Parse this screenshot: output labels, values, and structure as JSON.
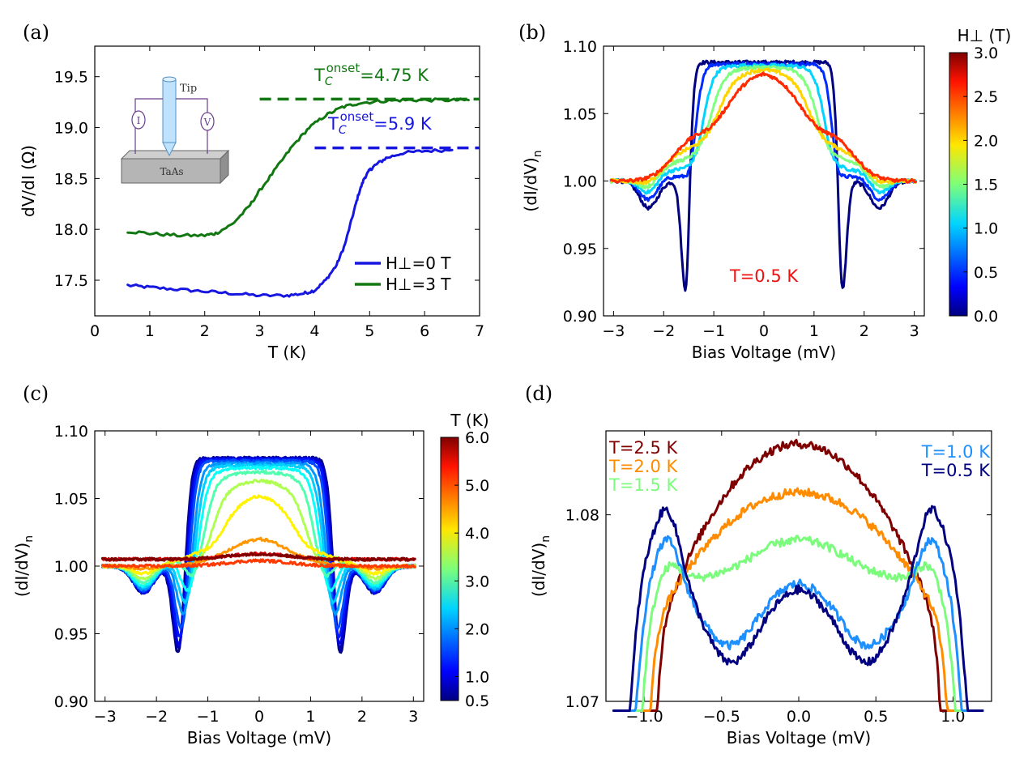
{
  "chart_data": [
    {
      "panel": "(a)",
      "type": "line",
      "xlabel": "T (K)",
      "ylabel": "dV/dI (Ω)",
      "xlim": [
        0,
        7
      ],
      "ylim": [
        17.15,
        19.8
      ],
      "xticks": [
        "0",
        "1",
        "2",
        "3",
        "4",
        "5",
        "6",
        "7"
      ],
      "yticks": [
        "17.5",
        "18.0",
        "18.5",
        "19.0",
        "19.5"
      ],
      "legend": {
        "position": "lower-right",
        "entries": [
          "H⊥=0 T",
          "H⊥=3 T"
        ]
      },
      "annotations": {
        "tc_green": {
          "prefix": "T",
          "sub": "C",
          "sup": "onset",
          "value": "=4.75 K",
          "color": "#117711",
          "level": 19.28,
          "from_x": 3.0
        },
        "tc_blue": {
          "prefix": "T",
          "sub": "C",
          "sup": "onset",
          "value": "=5.9 K",
          "color": "#1616e0",
          "level": 18.8,
          "from_x": 4.0
        }
      },
      "inset": {
        "tip_label": "Tip",
        "sample_label": "TaAs",
        "current_meter": "I",
        "voltage_meter": "V"
      },
      "series": [
        {
          "name": "H⊥=0 T",
          "color": "#1616e0",
          "x": [
            0.6,
            1.0,
            1.5,
            2.0,
            2.5,
            3.0,
            3.5,
            3.8,
            4.0,
            4.2,
            4.4,
            4.55,
            4.7,
            4.8,
            4.9,
            5.0,
            5.1,
            5.3,
            5.6,
            6.0,
            6.5
          ],
          "y": [
            17.45,
            17.43,
            17.41,
            17.39,
            17.37,
            17.35,
            17.35,
            17.37,
            17.4,
            17.5,
            17.65,
            17.85,
            18.15,
            18.35,
            18.5,
            18.58,
            18.63,
            18.7,
            18.75,
            18.77,
            18.78
          ]
        },
        {
          "name": "H⊥=3 T",
          "color": "#117711",
          "x": [
            0.6,
            1.0,
            1.5,
            2.0,
            2.2,
            2.5,
            2.8,
            3.0,
            3.3,
            3.6,
            3.9,
            4.2,
            4.5,
            4.8,
            5.2,
            5.6,
            6.0,
            6.5,
            6.8
          ],
          "y": [
            17.98,
            17.96,
            17.94,
            17.94,
            17.96,
            18.05,
            18.22,
            18.38,
            18.6,
            18.82,
            19.0,
            19.12,
            19.2,
            19.24,
            19.26,
            19.27,
            19.27,
            19.27,
            19.27
          ]
        }
      ]
    },
    {
      "panel": "(b)",
      "type": "line",
      "xlabel": "Bias Voltage (mV)",
      "ylabel": "(dI/dV)n",
      "xlim": [
        -3.2,
        3.2
      ],
      "ylim": [
        0.9,
        1.1
      ],
      "xticks": [
        "−3",
        "−2",
        "−1",
        "0",
        "1",
        "2",
        "3"
      ],
      "yticks": [
        "0.90",
        "0.95",
        "1.00",
        "1.05",
        "1.10"
      ],
      "annotation": {
        "text": "T=0.5 K",
        "color": "#ee1111"
      },
      "colorbar": {
        "title": "H⊥ (T)",
        "range": [
          0,
          3
        ],
        "ticks": [
          "0.0",
          "0.5",
          "1.0",
          "1.5",
          "2.0",
          "2.5",
          "3.0"
        ]
      },
      "field_T": [
        0.0,
        0.5,
        1.0,
        1.5,
        2.0,
        2.5
      ]
    },
    {
      "panel": "(c)",
      "type": "line",
      "xlabel": "Bias Voltage (mV)",
      "ylabel": "(dI/dV)n",
      "xlim": [
        -3.2,
        3.2
      ],
      "ylim": [
        0.9,
        1.1
      ],
      "xticks": [
        "−3",
        "−2",
        "−1",
        "0",
        "1",
        "2",
        "3"
      ],
      "yticks": [
        "0.90",
        "0.95",
        "1.00",
        "1.05",
        "1.10"
      ],
      "colorbar": {
        "title": "T (K)",
        "range": [
          0.5,
          6.0
        ],
        "ticks": [
          "0.5",
          "1.0",
          "2.0",
          "3.0",
          "4.0",
          "5.0",
          "6.0"
        ]
      },
      "temperature_K": [
        0.5,
        0.8,
        1.0,
        1.3,
        1.6,
        2.0,
        2.3,
        2.6,
        3.0,
        3.5,
        4.0,
        4.5,
        5.0,
        5.5,
        6.0
      ]
    },
    {
      "panel": "(d)",
      "type": "line",
      "xlabel": "Bias Voltage (mV)",
      "ylabel": "(dI/dV)n",
      "xlim": [
        -1.25,
        1.25
      ],
      "ylim": [
        1.07,
        1.0845
      ],
      "xticks": [
        "−1.0",
        "−0.5",
        "0.0",
        "0.5",
        "1.0"
      ],
      "yticks": [
        "1.07",
        "1.08"
      ],
      "legend_labels": [
        {
          "text": "T=2.5 K",
          "color": "#7f0000"
        },
        {
          "text": "T=2.0 K",
          "color": "#ff8c00"
        },
        {
          "text": "T=1.5 K",
          "color": "#7cfc7c"
        },
        {
          "text": "T=1.0 K",
          "color": "#1e8fff"
        },
        {
          "text": "T=0.5 K",
          "color": "#000080"
        }
      ]
    }
  ]
}
